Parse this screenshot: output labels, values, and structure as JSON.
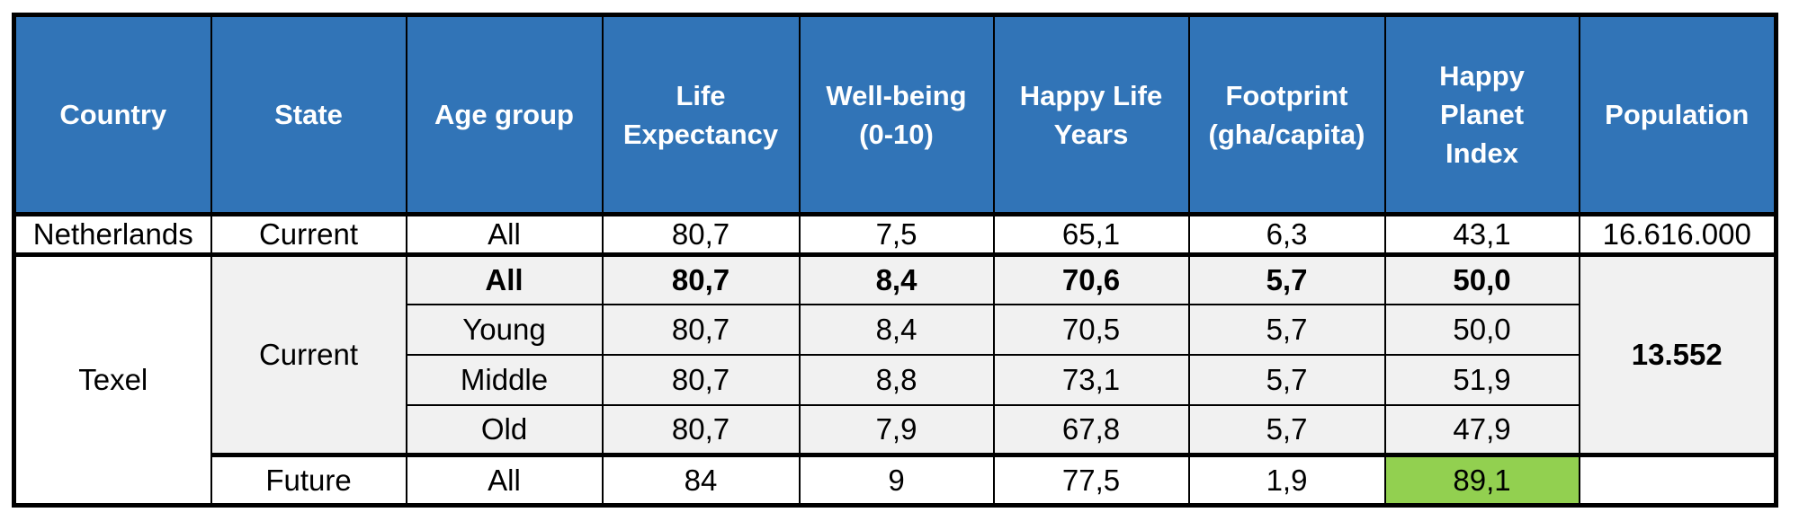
{
  "chart_data": {
    "type": "table",
    "columns": [
      "Country",
      "State",
      "Age group",
      "Life Expectancy",
      "Well-being (0-10)",
      "Happy Life Years",
      "Footprint (gha/capita)",
      "Happy Planet Index",
      "Population"
    ],
    "header_lines": [
      [
        "Country"
      ],
      [
        "State"
      ],
      [
        "Age group"
      ],
      [
        "Life",
        "Expectancy"
      ],
      [
        "Well-being",
        "(0-10)"
      ],
      [
        "Happy Life",
        "Years"
      ],
      [
        "Footprint",
        "(gha/capita)"
      ],
      [
        "Happy",
        "Planet",
        "Index"
      ],
      [
        "Population"
      ]
    ],
    "rows": [
      [
        "Netherlands",
        "Current",
        "All",
        "80,7",
        "7,5",
        "65,1",
        "6,3",
        "43,1",
        "16.616.000"
      ],
      [
        "Texel",
        "Current",
        "All",
        "80,7",
        "8,4",
        "70,6",
        "5,7",
        "50,0",
        "13.552"
      ],
      [
        "Texel",
        "Current",
        "Young",
        "80,7",
        "8,4",
        "70,5",
        "5,7",
        "50,0",
        "13.552"
      ],
      [
        "Texel",
        "Current",
        "Middle",
        "80,7",
        "8,8",
        "73,1",
        "5,7",
        "51,9",
        "13.552"
      ],
      [
        "Texel",
        "Current",
        "Old",
        "80,7",
        "7,9",
        "67,8",
        "5,7",
        "47,9",
        "13.552"
      ],
      [
        "Texel",
        "Future",
        "All",
        "84",
        "9",
        "77,5",
        "1,9",
        "89,1",
        ""
      ]
    ],
    "merged_cells": [
      {
        "value": "Texel",
        "column": "Country",
        "row_span": "rows 1-5"
      },
      {
        "value": "Current",
        "column": "State",
        "row_span": "rows 1-4"
      },
      {
        "value": "13.552",
        "column": "Population",
        "row_span": "rows 1-4"
      }
    ],
    "emphasis": {
      "bold_row_index": 1,
      "bold_cell": {
        "column": "Population",
        "value": "13.552"
      },
      "highlight_cell": {
        "row_index": 5,
        "column": "Happy Planet Index",
        "value": "89,1",
        "color": "#92D050"
      }
    }
  },
  "colors": {
    "header_bg": "#3174B7",
    "header_text": "#FFFFFF",
    "row_stripe": "#F1F1F1",
    "row_white": "#FFFFFF",
    "highlight": "#92D050",
    "border": "#000000",
    "text": "#000000"
  }
}
